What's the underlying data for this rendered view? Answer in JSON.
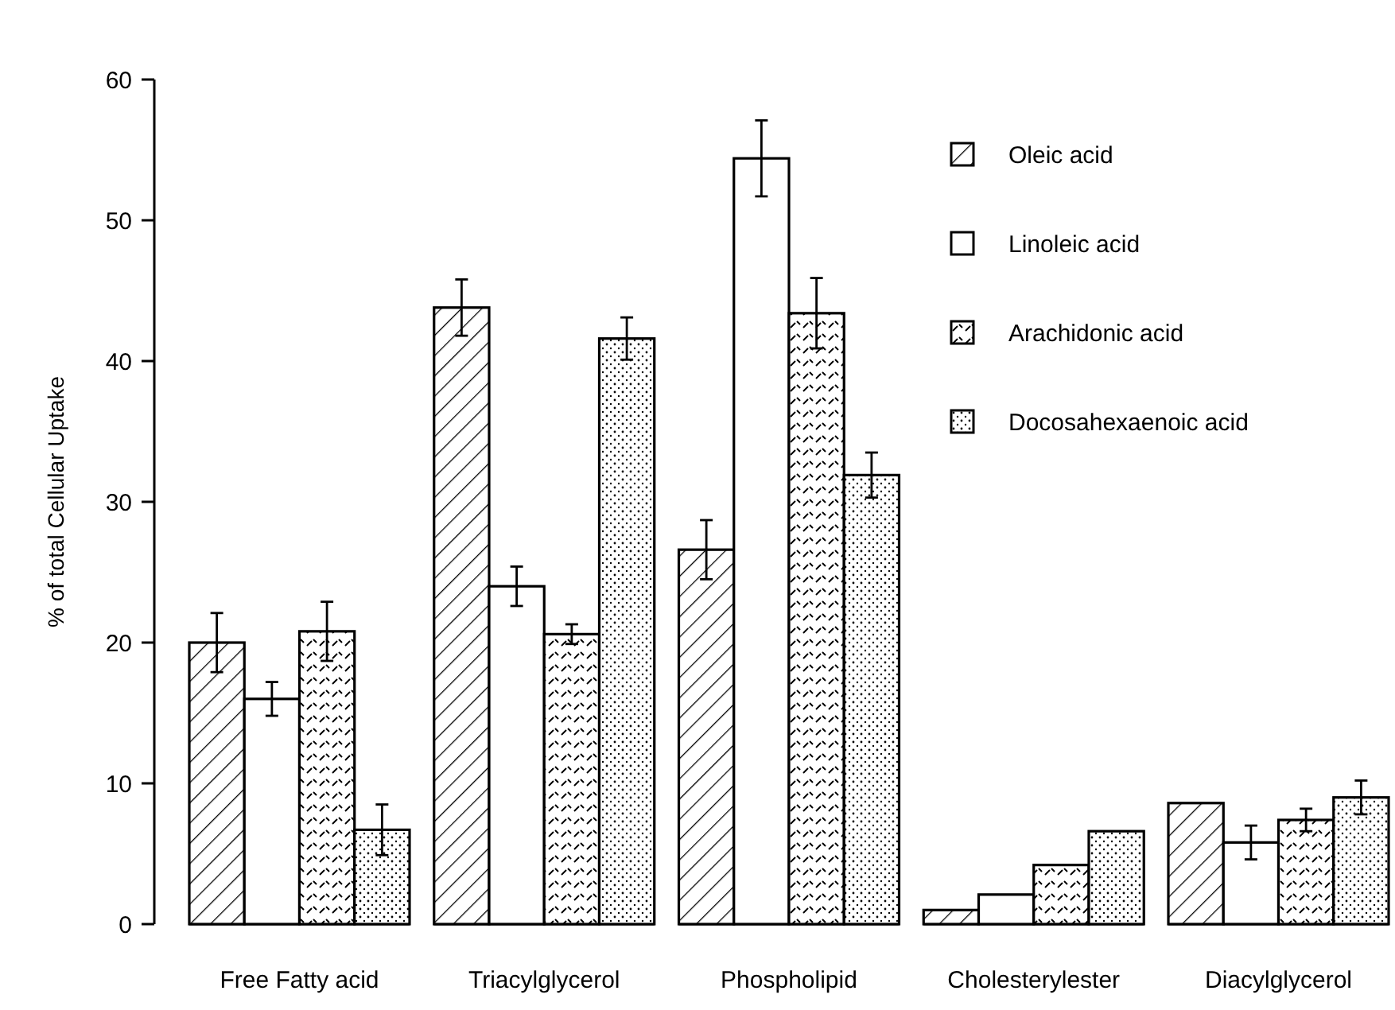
{
  "chart_data": {
    "type": "bar",
    "ylabel": "% of total Cellular Uptake",
    "categories": [
      "Free Fatty acid",
      "Triacylglycerol",
      "Phospholipid",
      "Cholesterylester",
      "Diacylglycerol"
    ],
    "ylim": [
      0,
      60
    ],
    "yticks": [
      0,
      10,
      20,
      30,
      40,
      50,
      60
    ],
    "legend": "top right",
    "series": [
      {
        "name": "Oleic acid",
        "color": "#000000",
        "values": [
          20.0,
          43.8,
          26.6,
          1.0,
          8.6
        ],
        "errors": [
          2.1,
          2.0,
          2.1,
          null,
          null
        ]
      },
      {
        "name": "Linoleic  acid",
        "color": "#000000",
        "values": [
          16.0,
          24.0,
          54.4,
          2.1,
          5.8
        ],
        "errors": [
          1.2,
          1.4,
          2.7,
          null,
          1.2
        ]
      },
      {
        "name": "Arachidonic acid",
        "color": "#000000",
        "values": [
          20.8,
          20.6,
          43.4,
          4.2,
          7.4
        ],
        "errors": [
          2.1,
          0.7,
          2.5,
          null,
          0.8
        ]
      },
      {
        "name": "Docosahexaenoic acid",
        "color": "#000000",
        "values": [
          6.7,
          41.6,
          31.9,
          6.6,
          9.0
        ],
        "errors": [
          1.8,
          1.5,
          1.6,
          null,
          1.2
        ]
      }
    ]
  }
}
